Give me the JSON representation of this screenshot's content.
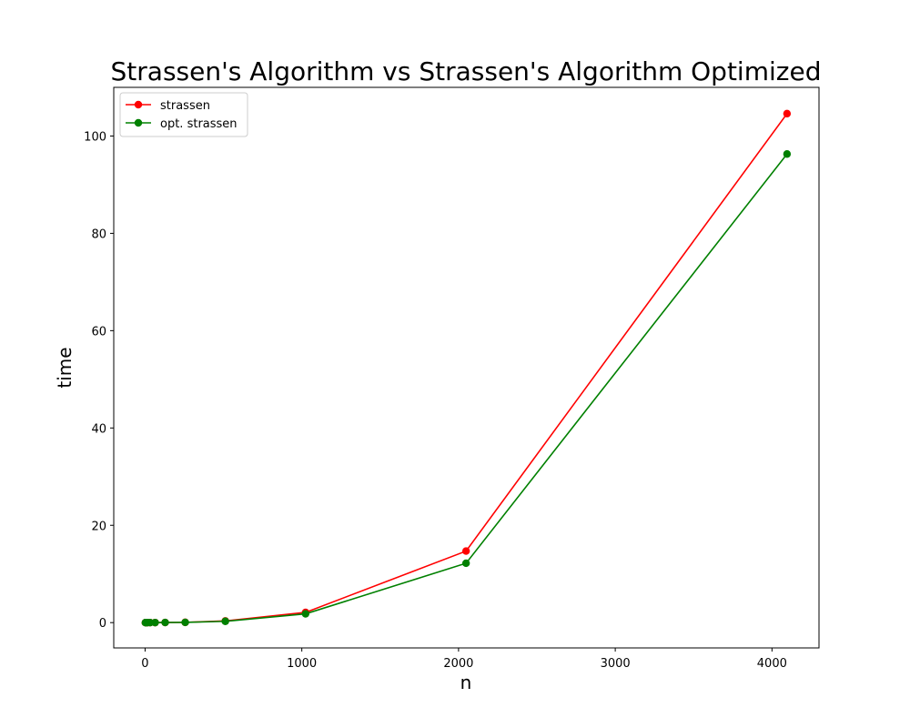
{
  "chart_data": {
    "type": "line",
    "title": "Strassen's Algorithm vs Strassen's Algorithm Optimized",
    "xlabel": "n",
    "ylabel": "time",
    "xlim": [
      -200,
      4300
    ],
    "ylim": [
      -5.2,
      110
    ],
    "xticks": [
      0,
      1000,
      2000,
      3000,
      4000
    ],
    "yticks": [
      0,
      20,
      40,
      60,
      80,
      100
    ],
    "grid": false,
    "legend_position": "upper-left",
    "x": [
      2,
      4,
      8,
      16,
      32,
      64,
      128,
      256,
      512,
      1024,
      2048,
      4096
    ],
    "series": [
      {
        "name": "strassen",
        "color": "#ff0000",
        "values": [
          0.0,
          0.0,
          0.0,
          0.0,
          0.0,
          0.01,
          0.03,
          0.06,
          0.35,
          2.1,
          14.7,
          104.6
        ]
      },
      {
        "name": "opt. strassen",
        "color": "#008000",
        "values": [
          0.0,
          0.0,
          0.0,
          0.0,
          0.0,
          0.01,
          0.02,
          0.05,
          0.27,
          1.8,
          12.2,
          96.3
        ]
      }
    ]
  }
}
